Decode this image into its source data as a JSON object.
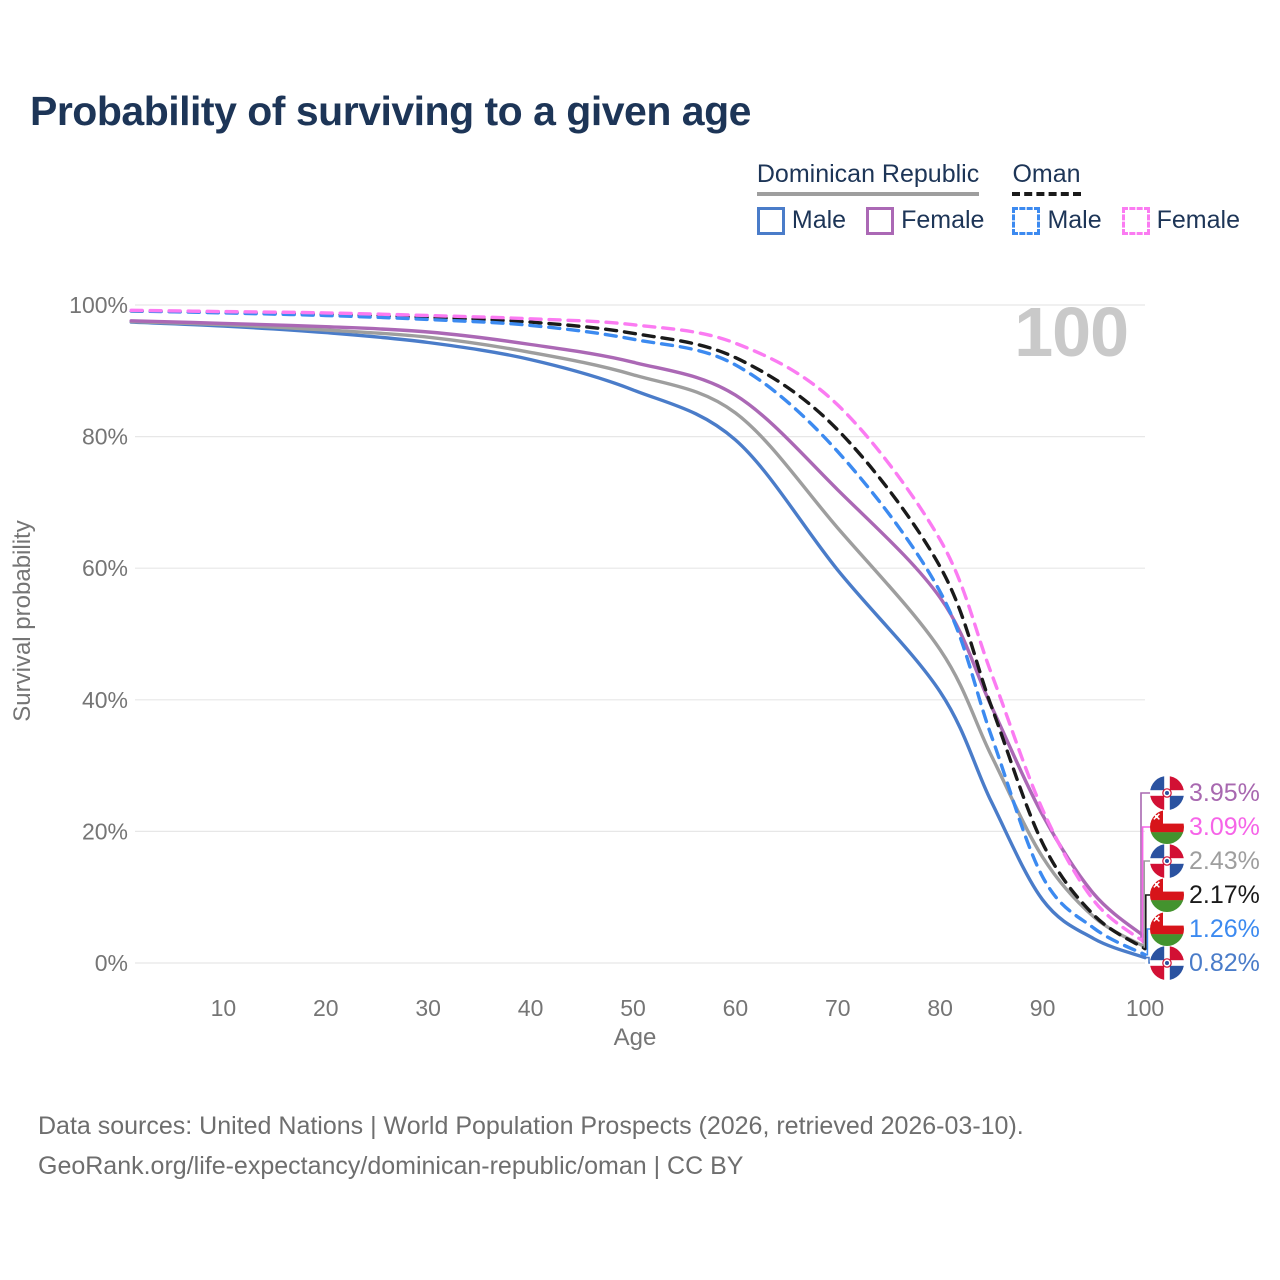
{
  "title": "Probability of surviving to a given age",
  "watermark": "100",
  "legend": {
    "groups": [
      {
        "label": "Dominican Republic",
        "style": "solid",
        "items": [
          {
            "label": "Male",
            "color": "#4a7cc9"
          },
          {
            "label": "Female",
            "color": "#ab68b5"
          }
        ]
      },
      {
        "label": "Oman",
        "style": "dashed",
        "items": [
          {
            "label": "Male",
            "color": "#3c8af0"
          },
          {
            "label": "Female",
            "color": "#fb7bf2"
          }
        ]
      }
    ]
  },
  "axes": {
    "y_label": "Survival probability",
    "x_label": "Age",
    "y_tick_values": [
      0,
      20,
      40,
      60,
      80,
      100
    ],
    "y_tick_labels": [
      "0%",
      "20%",
      "40%",
      "60%",
      "80%",
      "100%"
    ],
    "x_tick_values": [
      10,
      20,
      30,
      40,
      50,
      60,
      70,
      80,
      90,
      100
    ]
  },
  "chart_data": {
    "type": "line",
    "title": "Probability of surviving to a given age",
    "xlabel": "Age",
    "ylabel": "Survival probability",
    "xlim": [
      1,
      100
    ],
    "ylim": [
      0,
      100
    ],
    "grid": "horizontal",
    "legend_position": "top-right",
    "ages": [
      1,
      10,
      20,
      30,
      40,
      50,
      60,
      70,
      80,
      85,
      90,
      95,
      100
    ],
    "series": [
      {
        "id": "dr-male",
        "name": "Dominican Republic Male",
        "style": "solid",
        "color": "#4a7cc9",
        "end_value": 0.82,
        "values": [
          97.4,
          96.8,
          95.8,
          94.3,
          91.7,
          87.1,
          79.5,
          59.7,
          41.2,
          24.5,
          9.6,
          3.7,
          0.82
        ]
      },
      {
        "id": "dr-both",
        "name": "Dominican Republic",
        "style": "solid",
        "color": "#9e9e9e",
        "end_value": 2.43,
        "values": [
          97.5,
          97.0,
          96.2,
          95.1,
          92.8,
          89.4,
          83.6,
          66.1,
          47.6,
          31.5,
          16.1,
          7.0,
          2.43
        ]
      },
      {
        "id": "dr-female",
        "name": "Dominican Republic Female",
        "style": "solid",
        "color": "#ab68b5",
        "end_value": 3.95,
        "values": [
          97.6,
          97.2,
          96.7,
          95.9,
          94.0,
          91.3,
          86.3,
          71.9,
          55.5,
          39.0,
          22.5,
          10.5,
          3.95
        ]
      },
      {
        "id": "oman-male",
        "name": "Oman Male",
        "style": "dashed",
        "color": "#3c8af0",
        "end_value": 1.26,
        "values": [
          99.1,
          98.8,
          98.4,
          97.8,
          96.9,
          94.8,
          90.9,
          77.7,
          56.4,
          34.5,
          13.1,
          5.3,
          1.26
        ]
      },
      {
        "id": "oman-both",
        "name": "Oman",
        "style": "dashed",
        "color": "#1a1a1a",
        "end_value": 2.17,
        "values": [
          99.1,
          98.9,
          98.6,
          98.1,
          97.4,
          95.7,
          92.0,
          81.0,
          60.2,
          39.0,
          18.2,
          7.3,
          2.17
        ]
      },
      {
        "id": "oman-female",
        "name": "Oman Female",
        "style": "dashed",
        "color": "#fb7bf2",
        "end_value": 3.09,
        "values": [
          99.2,
          99.0,
          98.8,
          98.4,
          97.9,
          97.0,
          94.2,
          84.8,
          64.3,
          44.0,
          23.3,
          9.5,
          3.09
        ]
      }
    ],
    "end_labels": [
      {
        "series": "dr-female",
        "flag": "dr",
        "label": "3.95%",
        "color": "#a868b0"
      },
      {
        "series": "oman-female",
        "flag": "oman",
        "label": "3.09%",
        "color": "#f664e8"
      },
      {
        "series": "dr-both",
        "flag": "dr",
        "label": "2.43%",
        "color": "#9e9e9e"
      },
      {
        "series": "oman-both",
        "flag": "oman",
        "label": "2.17%",
        "color": "#1a1a1a"
      },
      {
        "series": "oman-male",
        "flag": "oman",
        "label": "1.26%",
        "color": "#3c8af0"
      },
      {
        "series": "dr-male",
        "flag": "dr",
        "label": "0.82%",
        "color": "#4a7cc9"
      }
    ]
  },
  "footer": {
    "line1": "Data sources: United Nations | World Population Prospects (2026, retrieved 2026-03-10).",
    "line2": "GeoRank.org/life-expectancy/dominican-republic/oman | CC BY"
  }
}
